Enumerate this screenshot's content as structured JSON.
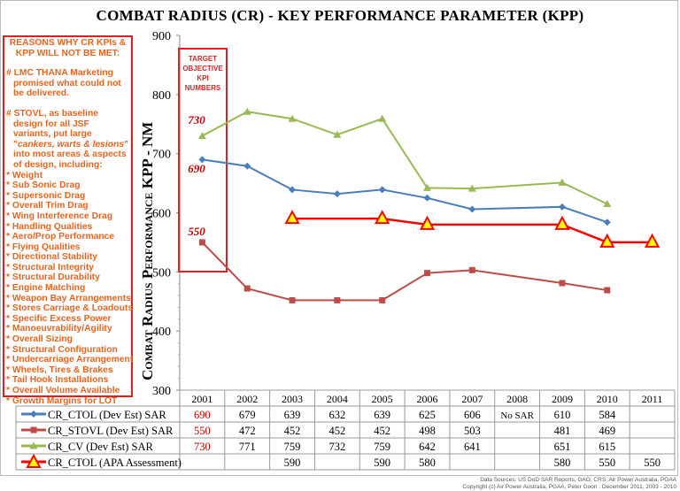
{
  "title": "COMBAT RADIUS (CR) - KEY PERFORMANCE PARAMETER (KPP)",
  "reasons": {
    "heading": "REASONS WHY CR KPIs & KPP WILL NOT BE MET:",
    "para1": "# LMC THANA Marketing promised what could not be delivered.",
    "para2a": "# STOVL, as baseline design for all JSF variants, put large \"",
    "para2b": "cankers, warts & lesions",
    "para2c": "\" into most areas & aspects of design, including:",
    "items": [
      "Weight",
      "Sub Sonic Drag",
      "Supersonic Drag",
      "Overall Trim Drag",
      "Wing Interference Drag",
      "Handling Qualities",
      "Aero/Prop Performance",
      "Flying Qualities",
      "Directional Stability",
      "Structural Integrity",
      "Structural Durability",
      "Engine Matching",
      "Weapon Bay Arrangements",
      "Stores Carriage & Loadouts",
      "Specific Excess Power",
      "Manoeuvrability/Agility",
      "Overall Sizing",
      "Structural Configuration",
      "Undercarriage Arrangement",
      "Wheels, Tires & Brakes",
      "Tail Hook Installations",
      "Overall Volume Available",
      "Growth Margins for LOT"
    ]
  },
  "target_box": {
    "lines": [
      "TARGET",
      "OBJECTIVE",
      "KPI",
      "NUMBERS"
    ],
    "labels": [
      "730",
      "690",
      "550"
    ]
  },
  "footer": {
    "line1": "Data Sources: US DoD SAR Reports, GAO, CRS, Air Power Australia, PGAA",
    "line2": "Copyright (c) Air Power Australia, PGAA, Peter Goon : December 2011, 2003 - 2010"
  },
  "chart_data": {
    "type": "line",
    "title": "COMBAT RADIUS (CR) - KEY PERFORMANCE PARAMETER (KPP)",
    "ylabel": "Combat Radius Performance KPP - NM",
    "ylim": [
      300,
      900
    ],
    "yticks": [
      "300",
      "400",
      "500",
      "600",
      "700",
      "800",
      "900"
    ],
    "categories": [
      "2001",
      "2002",
      "2003",
      "2004",
      "2005",
      "2006",
      "2007",
      "2008",
      "2009",
      "2010",
      "2011"
    ],
    "series": [
      {
        "name": "CR_CTOL (Dev Est) SAR",
        "color": "#4a7ebb",
        "marker": "diamond",
        "values": [
          690,
          679,
          639,
          632,
          639,
          625,
          606,
          null,
          610,
          584,
          null
        ],
        "cells": [
          "690",
          "679",
          "639",
          "632",
          "639",
          "625",
          "606",
          "No SAR",
          "610",
          "584",
          ""
        ]
      },
      {
        "name": "CR_STOVL (Dev Est) SAR",
        "color": "#be4b48",
        "marker": "square",
        "values": [
          550,
          472,
          452,
          452,
          452,
          498,
          503,
          null,
          481,
          469,
          null
        ],
        "cells": [
          "550",
          "472",
          "452",
          "452",
          "452",
          "498",
          "503",
          "",
          "481",
          "469",
          ""
        ]
      },
      {
        "name": "CR_CV (Dev Est)  SAR",
        "color": "#98b954",
        "marker": "triangle",
        "values": [
          730,
          771,
          759,
          732,
          759,
          642,
          641,
          null,
          651,
          615,
          null
        ],
        "cells": [
          "730",
          "771",
          "759",
          "732",
          "759",
          "642",
          "641",
          "",
          "651",
          "615",
          ""
        ]
      },
      {
        "name": "CR_CTOL (APA Assessment)",
        "color": "#ff0000",
        "marker": "triangle-yellow",
        "values": [
          null,
          null,
          590,
          null,
          590,
          580,
          null,
          null,
          580,
          550,
          550
        ],
        "cells": [
          "",
          "",
          "590",
          "",
          "590",
          "580",
          "",
          "",
          "580",
          "550",
          "550"
        ]
      }
    ]
  }
}
